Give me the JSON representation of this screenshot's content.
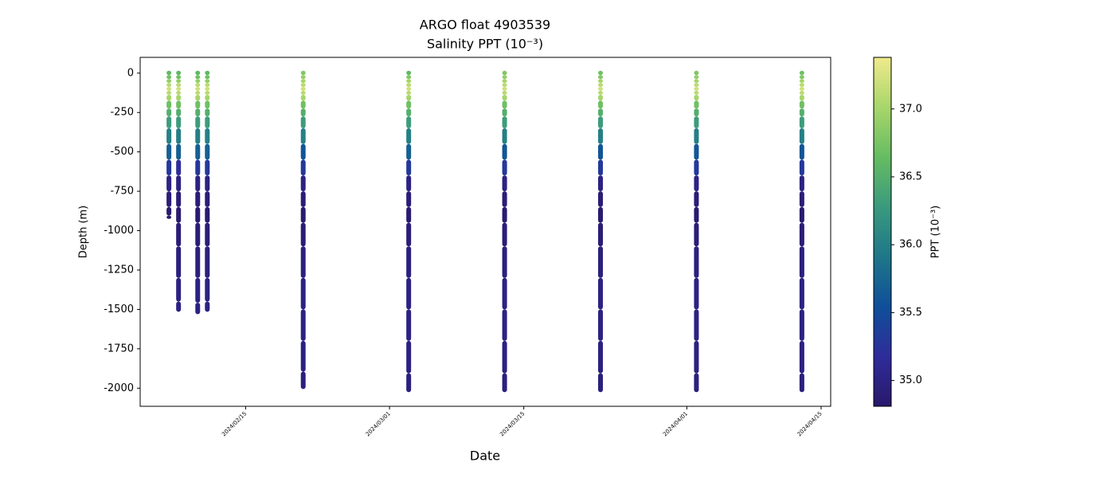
{
  "chart_data": {
    "type": "scatter",
    "title": "ARGO float 4903539",
    "subtitle": "Salinity PPT (10⁻³)",
    "x_label": "Date",
    "y_label": "Depth (m)",
    "colorbar_label": "PPT (10⁻³)",
    "xlim": [
      "2024-02-04",
      "2024-04-16"
    ],
    "xticks": [
      {
        "value": "2024-02-15",
        "label": "2024/02/15"
      },
      {
        "value": "2024-03-01",
        "label": "2024/03/01"
      },
      {
        "value": "2024-03-15",
        "label": "2024/03/15"
      },
      {
        "value": "2024-04-01",
        "label": "2024/04/01"
      },
      {
        "value": "2024-04-15",
        "label": "2024/04/15"
      }
    ],
    "ylim": [
      -2115,
      100
    ],
    "yticks": [
      0,
      -250,
      -500,
      -750,
      -1000,
      -1250,
      -1500,
      -1750,
      -2000
    ],
    "clim": [
      34.81,
      37.38
    ],
    "cticks": [
      {
        "value": 35,
        "label": "35.0"
      },
      {
        "value": 35.5,
        "label": "35.5"
      },
      {
        "value": 36,
        "label": "36.0"
      },
      {
        "value": 36.5,
        "label": "36.5"
      },
      {
        "value": 37,
        "label": "37.0"
      }
    ],
    "colormap": [
      "#29186b",
      "#2f2c9a",
      "#0f4f99",
      "#1e7789",
      "#3a9a7e",
      "#66bc62",
      "#a8d66a",
      "#f0ea8c"
    ],
    "series": [
      {
        "x": "2024-02-07",
        "depth": [
          0,
          -25,
          -50,
          -75,
          -100,
          -125,
          -150,
          -200,
          -250,
          -300,
          -400,
          -500,
          -600,
          -700,
          -800,
          -900,
          -910
        ],
        "salinity": [
          36.6,
          36.7,
          36.9,
          37.1,
          37.2,
          37.1,
          37.0,
          36.7,
          36.5,
          36.3,
          36.0,
          35.7,
          35.3,
          35.0,
          34.9,
          34.85,
          34.85
        ]
      },
      {
        "x": "2024-02-08",
        "depth": [
          0,
          -25,
          -50,
          -75,
          -100,
          -125,
          -150,
          -200,
          -250,
          -300,
          -400,
          -500,
          -600,
          -700,
          -800,
          -900,
          -1000,
          -1200,
          -1400,
          -1500
        ],
        "salinity": [
          36.6,
          36.7,
          36.9,
          37.1,
          37.2,
          37.1,
          37.0,
          36.7,
          36.5,
          36.3,
          36.0,
          35.7,
          35.2,
          35.0,
          34.9,
          34.85,
          34.9,
          34.95,
          35.0,
          35.0
        ]
      },
      {
        "x": "2024-02-10",
        "depth": [
          0,
          -25,
          -50,
          -75,
          -100,
          -125,
          -150,
          -200,
          -250,
          -300,
          -400,
          -500,
          -600,
          -700,
          -800,
          -900,
          -1000,
          -1200,
          -1400,
          -1515
        ],
        "salinity": [
          36.6,
          36.7,
          36.9,
          37.1,
          37.2,
          37.1,
          37.0,
          36.7,
          36.5,
          36.3,
          36.0,
          35.7,
          35.3,
          35.0,
          34.9,
          34.85,
          34.9,
          34.95,
          35.0,
          35.0
        ]
      },
      {
        "x": "2024-02-11",
        "depth": [
          0,
          -25,
          -50,
          -75,
          -100,
          -125,
          -150,
          -200,
          -250,
          -300,
          -400,
          -500,
          -600,
          -700,
          -800,
          -900,
          -1000,
          -1200,
          -1400,
          -1500
        ],
        "salinity": [
          36.6,
          36.7,
          36.9,
          37.1,
          37.2,
          37.1,
          37.0,
          36.7,
          36.5,
          36.3,
          36.0,
          35.7,
          35.3,
          35.0,
          34.9,
          34.85,
          34.9,
          34.95,
          35.0,
          35.0
        ]
      },
      {
        "x": "2024-02-21",
        "depth": [
          0,
          -25,
          -50,
          -75,
          -100,
          -125,
          -150,
          -200,
          -250,
          -300,
          -400,
          -500,
          -600,
          -700,
          -800,
          -900,
          -1000,
          -1200,
          -1400,
          -1600,
          -1800,
          -1990
        ],
        "salinity": [
          36.8,
          36.9,
          37.0,
          37.1,
          37.2,
          37.1,
          37.0,
          36.7,
          36.5,
          36.3,
          36.0,
          35.6,
          35.3,
          35.0,
          34.9,
          34.85,
          34.9,
          34.95,
          35.0,
          35.0,
          34.98,
          34.95
        ]
      },
      {
        "x": "2024-03-03",
        "depth": [
          0,
          -25,
          -50,
          -75,
          -100,
          -125,
          -150,
          -200,
          -250,
          -300,
          -400,
          -500,
          -600,
          -700,
          -800,
          -900,
          -1000,
          -1200,
          -1400,
          -1600,
          -1800,
          -2010
        ],
        "salinity": [
          36.6,
          36.8,
          37.0,
          37.1,
          37.2,
          37.1,
          37.0,
          36.7,
          36.5,
          36.3,
          36.0,
          35.7,
          35.3,
          35.0,
          34.9,
          34.85,
          34.9,
          34.95,
          35.0,
          35.0,
          34.98,
          34.95
        ]
      },
      {
        "x": "2024-03-13",
        "depth": [
          0,
          -25,
          -50,
          -75,
          -100,
          -125,
          -150,
          -200,
          -250,
          -300,
          -400,
          -500,
          -600,
          -700,
          -800,
          -900,
          -1000,
          -1200,
          -1400,
          -1600,
          -1800,
          -2010
        ],
        "salinity": [
          36.8,
          36.9,
          37.0,
          37.1,
          37.2,
          37.1,
          37.0,
          36.7,
          36.5,
          36.3,
          36.0,
          35.6,
          35.3,
          35.0,
          34.9,
          34.85,
          34.9,
          34.95,
          35.0,
          35.0,
          34.98,
          34.95
        ]
      },
      {
        "x": "2024-03-23",
        "depth": [
          0,
          -25,
          -50,
          -75,
          -100,
          -125,
          -150,
          -200,
          -250,
          -300,
          -400,
          -500,
          -600,
          -700,
          -800,
          -900,
          -1000,
          -1200,
          -1400,
          -1600,
          -1800,
          -2010
        ],
        "salinity": [
          36.7,
          36.8,
          37.0,
          37.1,
          37.2,
          37.1,
          37.0,
          36.7,
          36.5,
          36.3,
          36.0,
          35.6,
          35.3,
          35.0,
          34.9,
          34.85,
          34.9,
          34.95,
          35.0,
          35.0,
          34.98,
          34.95
        ]
      },
      {
        "x": "2024-04-02",
        "depth": [
          0,
          -25,
          -50,
          -75,
          -100,
          -125,
          -150,
          -200,
          -250,
          -300,
          -400,
          -500,
          -600,
          -700,
          -800,
          -900,
          -1000,
          -1200,
          -1400,
          -1600,
          -1800,
          -2010
        ],
        "salinity": [
          36.8,
          36.9,
          37.0,
          37.1,
          37.2,
          37.1,
          37.0,
          36.7,
          36.5,
          36.3,
          36.0,
          35.6,
          35.3,
          35.0,
          34.9,
          34.85,
          34.9,
          34.95,
          35.0,
          35.0,
          34.98,
          34.95
        ]
      },
      {
        "x": "2024-04-13",
        "depth": [
          0,
          -25,
          -50,
          -75,
          -100,
          -125,
          -150,
          -200,
          -250,
          -300,
          -400,
          -500,
          -600,
          -700,
          -800,
          -900,
          -1000,
          -1200,
          -1400,
          -1600,
          -1800,
          -2010
        ],
        "salinity": [
          36.7,
          36.8,
          37.0,
          37.1,
          37.2,
          37.1,
          37.0,
          36.7,
          36.5,
          36.3,
          36.0,
          35.6,
          35.3,
          35.0,
          34.9,
          34.85,
          34.9,
          34.95,
          35.0,
          35.0,
          34.98,
          34.95
        ]
      }
    ]
  }
}
